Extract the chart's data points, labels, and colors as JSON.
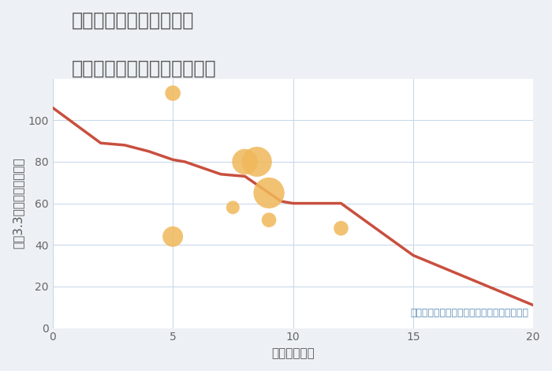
{
  "title_line1": "福岡県太宰府市梅ヶ丘の",
  "title_line2": "駅距離別中古マンション価格",
  "xlabel": "駅距離（分）",
  "ylabel": "坪（3.3㎡）単価（万円）",
  "background_color": "#edf1f5",
  "plot_bg_color": "#ffffff",
  "line_color": "#c94f3e",
  "line_x": [
    0,
    2,
    3,
    4,
    5,
    5.5,
    6,
    7,
    8,
    9,
    9.5,
    10,
    12,
    15,
    20
  ],
  "line_y": [
    106,
    89,
    88,
    85,
    81,
    80,
    78,
    74,
    73,
    65,
    61,
    60,
    60,
    35,
    11
  ],
  "scatter_x": [
    5,
    5,
    7.5,
    8,
    8.5,
    9,
    9,
    12
  ],
  "scatter_y": [
    113,
    44,
    58,
    80,
    80,
    65,
    52,
    48
  ],
  "scatter_sizes": [
    200,
    350,
    150,
    550,
    750,
    800,
    180,
    180
  ],
  "scatter_color": "#f0b85a",
  "scatter_alpha": 0.85,
  "annotation": "円の大きさは、取引のあった物件面積を示す",
  "annotation_color": "#5b8db8",
  "xlim": [
    0,
    20
  ],
  "ylim": [
    0,
    120
  ],
  "xticks": [
    0,
    5,
    10,
    15,
    20
  ],
  "yticks": [
    0,
    20,
    40,
    60,
    80,
    100
  ],
  "grid_color": "#c5d5e8",
  "title_color": "#555555",
  "axis_label_color": "#555555",
  "tick_color": "#666666",
  "title_fontsize": 17,
  "label_fontsize": 11,
  "tick_fontsize": 10,
  "annotation_fontsize": 9
}
